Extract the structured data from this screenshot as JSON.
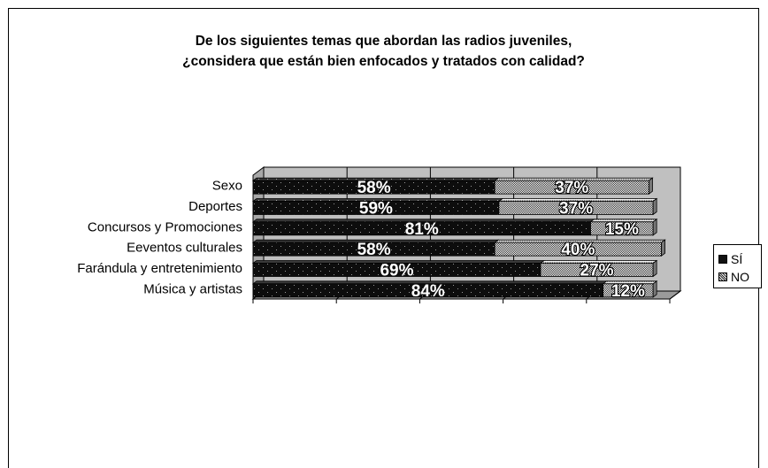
{
  "chart_data": {
    "type": "bar",
    "orientation": "horizontal",
    "stacked": true,
    "title_lines": [
      "De los siguientes temas que abordan las radios juveniles,",
      "¿considera que están bien enfocados y tratados con calidad?"
    ],
    "categories": [
      "Sexo",
      "Deportes",
      "Concursos y Promociones",
      "Eeventos culturales",
      "Farándula y entretenimiento",
      "Música y artistas"
    ],
    "series": [
      {
        "name": "SÍ",
        "values": [
          58,
          59,
          81,
          58,
          69,
          84
        ],
        "labels": [
          "58%",
          "59%",
          "81%",
          "58%",
          "69%",
          "84%"
        ],
        "color": "#111111",
        "pattern": "dots-dark"
      },
      {
        "name": "NO",
        "values": [
          37,
          37,
          15,
          40,
          27,
          12
        ],
        "labels": [
          "37%",
          "37%",
          "15%",
          "40%",
          "27%",
          "12%"
        ],
        "color": "#aaaaaa",
        "pattern": "checker"
      }
    ],
    "xlim": [
      0,
      100
    ],
    "grid": true,
    "legend_position": "right"
  }
}
